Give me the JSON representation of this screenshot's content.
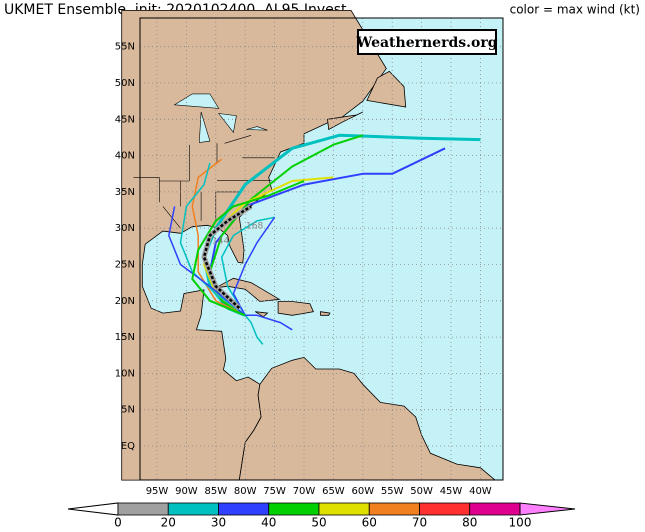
{
  "header": {
    "title": "UKMET Ensemble, init: 2020102400, AL95 Invest",
    "legend_note": "color = max wind (kt)"
  },
  "watermark": "Weathernerds.org",
  "map": {
    "lat_labels": [
      "55N",
      "50N",
      "45N",
      "40N",
      "35N",
      "30N",
      "25N",
      "20N",
      "15N",
      "10N",
      "5N",
      "EQ"
    ],
    "lon_labels": [
      "95W",
      "90W",
      "85W",
      "80W",
      "75W",
      "70W",
      "65W",
      "60W",
      "55W",
      "50W",
      "45W",
      "40W"
    ],
    "track_labels": [
      "168",
      "144"
    ]
  },
  "colorbar": {
    "ticks": [
      0,
      20,
      30,
      40,
      50,
      60,
      70,
      80,
      100
    ],
    "colors": [
      "#a0a0a0",
      "#00c0c0",
      "#3040ff",
      "#00d000",
      "#e0e000",
      "#f08020",
      "#ff3030",
      "#e00090",
      "#ff80ff"
    ]
  }
}
